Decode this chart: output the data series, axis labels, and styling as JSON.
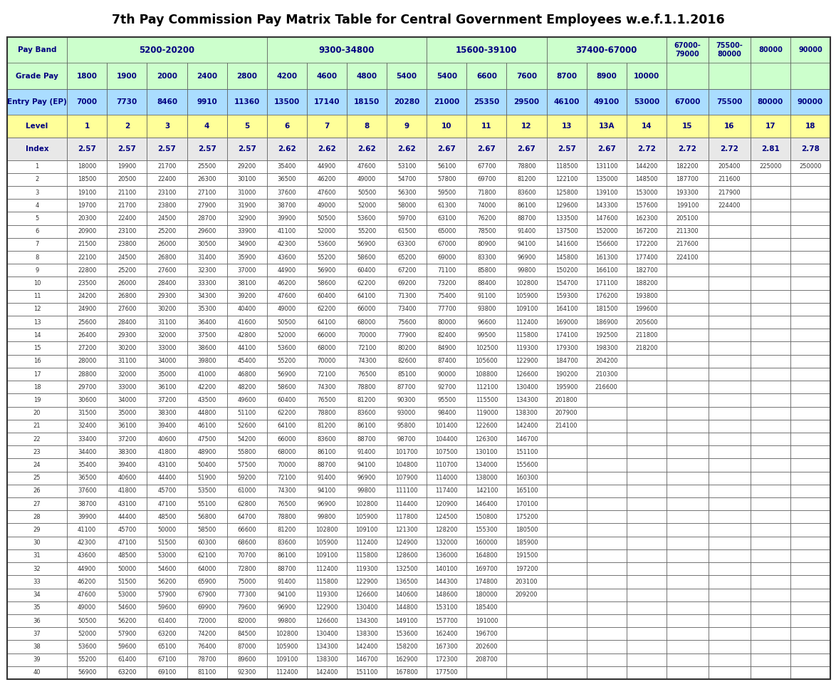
{
  "title": "7th Pay Commission Pay Matrix Table for Central Government Employees w.e.f.1.1.2016",
  "grade_pays": [
    "Grade Pay",
    "1800",
    "1900",
    "2000",
    "2400",
    "2800",
    "4200",
    "4600",
    "4800",
    "5400",
    "5400",
    "6600",
    "7600",
    "8700",
    "8900",
    "10000",
    "",
    "",
    "",
    ""
  ],
  "entry_pays": [
    "Entry Pay (EP)",
    "7000",
    "7730",
    "8460",
    "9910",
    "11360",
    "13500",
    "17140",
    "18150",
    "20280",
    "21000",
    "25350",
    "29500",
    "46100",
    "49100",
    "53000",
    "67000",
    "75500",
    "80000",
    "90000"
  ],
  "levels": [
    "Level",
    "1",
    "2",
    "3",
    "4",
    "5",
    "6",
    "7",
    "8",
    "9",
    "10",
    "11",
    "12",
    "13",
    "13A",
    "14",
    "15",
    "16",
    "17",
    "18"
  ],
  "indexes": [
    "Index",
    "2.57",
    "2.57",
    "2.57",
    "2.57",
    "2.57",
    "2.62",
    "2.62",
    "2.62",
    "2.62",
    "2.67",
    "2.67",
    "2.67",
    "2.57",
    "2.67",
    "2.72",
    "2.72",
    "2.72",
    "2.81",
    "2.78"
  ],
  "pay_band_spans": [
    {
      "label": "5200-20200",
      "start": 1,
      "end": 5
    },
    {
      "label": "9300-34800",
      "start": 6,
      "end": 9
    },
    {
      "label": "15600-39100",
      "start": 10,
      "end": 12
    },
    {
      "label": "37400-67000",
      "start": 13,
      "end": 15
    }
  ],
  "pay_band_singles": [
    {
      "label": "67000-\n79000",
      "col": 16
    },
    {
      "label": "75500-\n80000",
      "col": 17
    },
    {
      "label": "80000",
      "col": 18
    },
    {
      "label": "90000",
      "col": 19
    }
  ],
  "data": [
    [
      1,
      18000,
      19900,
      21700,
      25500,
      29200,
      35400,
      44900,
      47600,
      53100,
      56100,
      67700,
      78800,
      118500,
      131100,
      144200,
      182200,
      205400,
      225000,
      250000
    ],
    [
      2,
      18500,
      20500,
      22400,
      26300,
      30100,
      36500,
      46200,
      49000,
      54700,
      57800,
      69700,
      81200,
      122100,
      135000,
      148500,
      187700,
      211600,
      "",
      ""
    ],
    [
      3,
      19100,
      21100,
      23100,
      27100,
      31000,
      37600,
      47600,
      50500,
      56300,
      59500,
      71800,
      83600,
      125800,
      139100,
      153000,
      193300,
      217900,
      "",
      ""
    ],
    [
      4,
      19700,
      21700,
      23800,
      27900,
      31900,
      38700,
      49000,
      52000,
      58000,
      61300,
      74000,
      86100,
      129600,
      143300,
      157600,
      199100,
      224400,
      "",
      ""
    ],
    [
      5,
      20300,
      22400,
      24500,
      28700,
      32900,
      39900,
      50500,
      53600,
      59700,
      63100,
      76200,
      88700,
      133500,
      147600,
      162300,
      205100,
      "",
      "",
      ""
    ],
    [
      6,
      20900,
      23100,
      25200,
      29600,
      33900,
      41100,
      52000,
      55200,
      61500,
      65000,
      78500,
      91400,
      137500,
      152000,
      167200,
      211300,
      "",
      "",
      ""
    ],
    [
      7,
      21500,
      23800,
      26000,
      30500,
      34900,
      42300,
      53600,
      56900,
      63300,
      67000,
      80900,
      94100,
      141600,
      156600,
      172200,
      217600,
      "",
      "",
      ""
    ],
    [
      8,
      22100,
      24500,
      26800,
      31400,
      35900,
      43600,
      55200,
      58600,
      65200,
      69000,
      83300,
      96900,
      145800,
      161300,
      177400,
      224100,
      "",
      "",
      ""
    ],
    [
      9,
      22800,
      25200,
      27600,
      32300,
      37000,
      44900,
      56900,
      60400,
      67200,
      71100,
      85800,
      99800,
      150200,
      166100,
      182700,
      "",
      "",
      "",
      ""
    ],
    [
      10,
      23500,
      26000,
      28400,
      33300,
      38100,
      46200,
      58600,
      62200,
      69200,
      73200,
      88400,
      102800,
      154700,
      171100,
      188200,
      "",
      "",
      "",
      ""
    ],
    [
      11,
      24200,
      26800,
      29300,
      34300,
      39200,
      47600,
      60400,
      64100,
      71300,
      75400,
      91100,
      105900,
      159300,
      176200,
      193800,
      "",
      "",
      "",
      ""
    ],
    [
      12,
      24900,
      27600,
      30200,
      35300,
      40400,
      49000,
      62200,
      66000,
      73400,
      77700,
      93800,
      109100,
      164100,
      181500,
      199600,
      "",
      "",
      "",
      ""
    ],
    [
      13,
      25600,
      28400,
      31100,
      36400,
      41600,
      50500,
      64100,
      68000,
      75600,
      80000,
      96600,
      112400,
      169000,
      186900,
      205600,
      "",
      "",
      "",
      ""
    ],
    [
      14,
      26400,
      29300,
      32000,
      37500,
      42800,
      52000,
      66000,
      70000,
      77900,
      82400,
      99500,
      115800,
      174100,
      192500,
      211800,
      "",
      "",
      "",
      ""
    ],
    [
      15,
      27200,
      30200,
      33000,
      38600,
      44100,
      53600,
      68000,
      72100,
      80200,
      84900,
      102500,
      119300,
      179300,
      198300,
      218200,
      "",
      "",
      "",
      ""
    ],
    [
      16,
      28000,
      31100,
      34000,
      39800,
      45400,
      55200,
      70000,
      74300,
      82600,
      87400,
      105600,
      122900,
      184700,
      204200,
      "",
      "",
      "",
      "",
      ""
    ],
    [
      17,
      28800,
      32000,
      35000,
      41000,
      46800,
      56900,
      72100,
      76500,
      85100,
      90000,
      108800,
      126600,
      190200,
      210300,
      "",
      "",
      "",
      "",
      ""
    ],
    [
      18,
      29700,
      33000,
      36100,
      42200,
      48200,
      58600,
      74300,
      78800,
      87700,
      92700,
      112100,
      130400,
      195900,
      216600,
      "",
      "",
      "",
      "",
      ""
    ],
    [
      19,
      30600,
      34000,
      37200,
      43500,
      49600,
      60400,
      76500,
      81200,
      90300,
      95500,
      115500,
      134300,
      201800,
      "",
      "",
      "",
      "",
      "",
      ""
    ],
    [
      20,
      31500,
      35000,
      38300,
      44800,
      51100,
      62200,
      78800,
      83600,
      93000,
      98400,
      119000,
      138300,
      207900,
      "",
      "",
      "",
      "",
      "",
      ""
    ],
    [
      21,
      32400,
      36100,
      39400,
      46100,
      52600,
      64100,
      81200,
      86100,
      95800,
      101400,
      122600,
      142400,
      214100,
      "",
      "",
      "",
      "",
      "",
      ""
    ],
    [
      22,
      33400,
      37200,
      40600,
      47500,
      54200,
      66000,
      83600,
      88700,
      98700,
      104400,
      126300,
      146700,
      "",
      "",
      "",
      "",
      "",
      "",
      ""
    ],
    [
      23,
      34400,
      38300,
      41800,
      48900,
      55800,
      68000,
      86100,
      91400,
      101700,
      107500,
      130100,
      151100,
      "",
      "",
      "",
      "",
      "",
      "",
      ""
    ],
    [
      24,
      35400,
      39400,
      43100,
      50400,
      57500,
      70000,
      88700,
      94100,
      104800,
      110700,
      134000,
      155600,
      "",
      "",
      "",
      "",
      "",
      "",
      ""
    ],
    [
      25,
      36500,
      40600,
      44400,
      51900,
      59200,
      72100,
      91400,
      96900,
      107900,
      114000,
      138000,
      160300,
      "",
      "",
      "",
      "",
      "",
      "",
      ""
    ],
    [
      26,
      37600,
      41800,
      45700,
      53500,
      61000,
      74300,
      94100,
      99800,
      111100,
      117400,
      142100,
      165100,
      "",
      "",
      "",
      "",
      "",
      "",
      ""
    ],
    [
      27,
      38700,
      43100,
      47100,
      55100,
      62800,
      76500,
      96900,
      102800,
      114400,
      120900,
      146400,
      170100,
      "",
      "",
      "",
      "",
      "",
      "",
      ""
    ],
    [
      28,
      39900,
      44400,
      48500,
      56800,
      64700,
      78800,
      99800,
      105900,
      117800,
      124500,
      150800,
      175200,
      "",
      "",
      "",
      "",
      "",
      "",
      ""
    ],
    [
      29,
      41100,
      45700,
      50000,
      58500,
      66600,
      81200,
      102800,
      109100,
      121300,
      128200,
      155300,
      180500,
      "",
      "",
      "",
      "",
      "",
      "",
      ""
    ],
    [
      30,
      42300,
      47100,
      51500,
      60300,
      68600,
      83600,
      105900,
      112400,
      124900,
      132000,
      160000,
      185900,
      "",
      "",
      "",
      "",
      "",
      "",
      ""
    ],
    [
      31,
      43600,
      48500,
      53000,
      62100,
      70700,
      86100,
      109100,
      115800,
      128600,
      136000,
      164800,
      191500,
      "",
      "",
      "",
      "",
      "",
      "",
      ""
    ],
    [
      32,
      44900,
      50000,
      54600,
      64000,
      72800,
      88700,
      112400,
      119300,
      132500,
      140100,
      169700,
      197200,
      "",
      "",
      "",
      "",
      "",
      "",
      ""
    ],
    [
      33,
      46200,
      51500,
      56200,
      65900,
      75000,
      91400,
      115800,
      122900,
      136500,
      144300,
      174800,
      203100,
      "",
      "",
      "",
      "",
      "",
      "",
      ""
    ],
    [
      34,
      47600,
      53000,
      57900,
      67900,
      77300,
      94100,
      119300,
      126600,
      140600,
      148600,
      180000,
      209200,
      "",
      "",
      "",
      "",
      "",
      "",
      ""
    ],
    [
      35,
      49000,
      54600,
      59600,
      69900,
      79600,
      96900,
      122900,
      130400,
      144800,
      153100,
      185400,
      "",
      "",
      "",
      "",
      "",
      "",
      "",
      ""
    ],
    [
      36,
      50500,
      56200,
      61400,
      72000,
      82000,
      99800,
      126600,
      134300,
      149100,
      157700,
      191000,
      "",
      "",
      "",
      "",
      "",
      "",
      "",
      ""
    ],
    [
      37,
      52000,
      57900,
      63200,
      74200,
      84500,
      102800,
      130400,
      138300,
      153600,
      162400,
      196700,
      "",
      "",
      "",
      "",
      "",
      "",
      "",
      ""
    ],
    [
      38,
      53600,
      59600,
      65100,
      76400,
      87000,
      105900,
      134300,
      142400,
      158200,
      167300,
      202600,
      "",
      "",
      "",
      "",
      "",
      "",
      "",
      ""
    ],
    [
      39,
      55200,
      61400,
      67100,
      78700,
      89600,
      109100,
      138300,
      146700,
      162900,
      172300,
      208700,
      "",
      "",
      "",
      "",
      "",
      "",
      "",
      ""
    ],
    [
      40,
      56900,
      63200,
      69100,
      81100,
      92300,
      112400,
      142400,
      151100,
      167800,
      177500,
      "",
      "",
      "",
      "",
      "",
      "",
      "",
      "",
      ""
    ]
  ],
  "n_cols": 20,
  "n_data_rows": 40,
  "bg_green": "#ccffcc",
  "bg_blue": "#aaddff",
  "bg_yellow": "#ffff99",
  "bg_gray": "#e8e8e8",
  "bg_white": "#ffffff",
  "hdr_color": "#000080",
  "dat_color": "#333333",
  "title_color": "#000000"
}
